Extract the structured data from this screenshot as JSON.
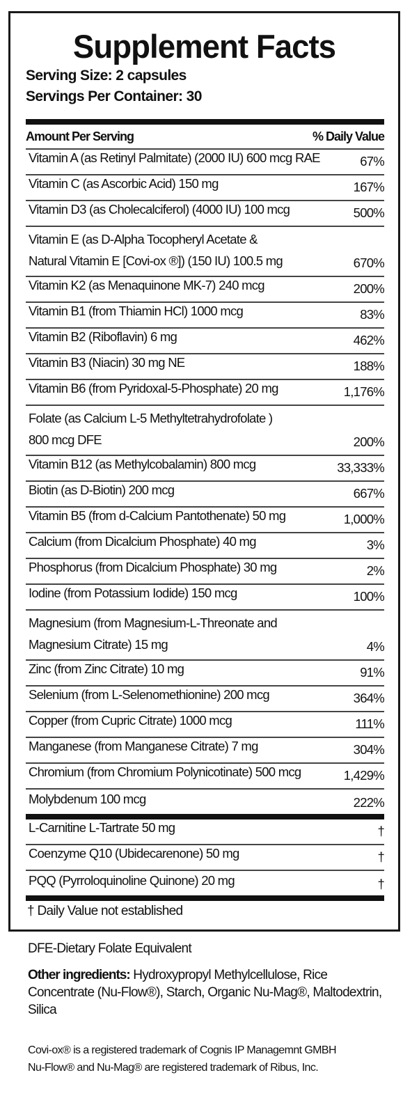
{
  "title": "Supplement Facts",
  "serving_size": "Serving Size: 2 capsules",
  "servings_per_container": "Servings Per Container: 30",
  "header": {
    "amount": "Amount Per Serving",
    "dv": "% Daily Value"
  },
  "nutrients": [
    {
      "name": "Vitamin A (as Retinyl Palmitate) (2000 IU) 600 mcg RAE",
      "dv": "67%"
    },
    {
      "name": "Vitamin C (as Ascorbic Acid) 150 mg",
      "dv": "167%"
    },
    {
      "name": "Vitamin D3 (as Cholecalciferol) (4000 IU) 100 mcg",
      "dv": "500%"
    },
    {
      "name": "Vitamin E (as D-Alpha Tocopheryl Acetate &\nNatural Vitamin E [Covi-ox ®]) (150 IU) 100.5 mg",
      "dv": "670%"
    },
    {
      "name": "Vitamin K2 (as Menaquinone MK-7) 240 mcg",
      "dv": "200%"
    },
    {
      "name": "Vitamin B1 (from Thiamin HCl) 1000 mcg",
      "dv": "83%"
    },
    {
      "name": "Vitamin B2 (Riboflavin) 6 mg",
      "dv": "462%"
    },
    {
      "name": "Vitamin B3 (Niacin) 30 mg NE",
      "dv": "188%"
    },
    {
      "name": "Vitamin B6 (from Pyridoxal-5-Phosphate) 20 mg",
      "dv": "1,176%"
    },
    {
      "name": "Folate (as Calcium L-5 Methyltetrahydrofolate )\n800 mcg  DFE",
      "dv": "200%"
    },
    {
      "name": "Vitamin B12 (as Methylcobalamin) 800 mcg",
      "dv": "33,333%"
    },
    {
      "name": "Biotin (as D-Biotin) 200 mcg",
      "dv": "667%"
    },
    {
      "name": "Vitamin B5 (from d-Calcium Pantothenate) 50 mg",
      "dv": "1,000%"
    },
    {
      "name": "Calcium (from Dicalcium Phosphate)  40 mg",
      "dv": "3%"
    },
    {
      "name": "Phosphorus (from Dicalcium Phosphate) 30 mg",
      "dv": "2%"
    },
    {
      "name": "Iodine (from Potassium Iodide) 150 mcg",
      "dv": "100%"
    },
    {
      "name": "Magnesium (from Magnesium-L-Threonate and\nMagnesium Citrate) 15 mg",
      "dv": "4%"
    },
    {
      "name": "Zinc (from Zinc Citrate) 10 mg",
      "dv": "91%"
    },
    {
      "name": "Selenium (from L-Selenomethionine) 200 mcg",
      "dv": "364%"
    },
    {
      "name": "Copper (from Cupric Citrate) 1000 mcg",
      "dv": "111%"
    },
    {
      "name": "Manganese (from Manganese Citrate) 7 mg",
      "dv": "304%"
    },
    {
      "name": "Chromium (from Chromium Polynicotinate) 500 mcg",
      "dv": "1,429%"
    },
    {
      "name": "Molybdenum 100 mcg",
      "dv": "222%"
    }
  ],
  "other_actives": [
    {
      "name": "L-Carnitine L-Tartrate 50 mg",
      "dv": "†"
    },
    {
      "name": "Coenzyme Q10 (Ubidecarenone) 50 mg",
      "dv": "†"
    },
    {
      "name": "PQQ (Pyrroloquinoline Quinone) 20 mg",
      "dv": "†"
    }
  ],
  "footnote": "† Daily Value not established",
  "dfe_note": "DFE-Dietary Folate Equivalent",
  "other_ingredients": {
    "label": "Other ingredients:",
    "text": " Hydroxypropyl Methylcellulose, Rice Concentrate (Nu-Flow®), Starch, Organic Nu-Mag®, Maltodextrin, Silica"
  },
  "trademarks": [
    "Covi-ox® is a registered trademark of Cognis IP Managemnt GMBH",
    "Nu-Flow® and Nu-Mag® are registered trademark of Ribus, Inc."
  ]
}
